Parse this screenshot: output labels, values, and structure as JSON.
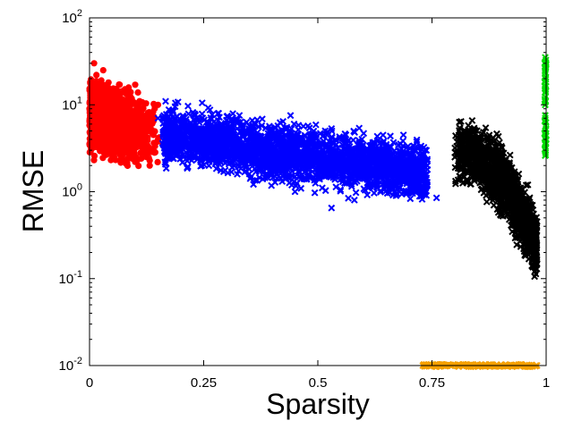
{
  "chart_data": {
    "type": "scatter",
    "title": "",
    "xlabel": "Sparsity",
    "ylabel": "RMSE",
    "xlim": [
      0,
      1
    ],
    "ylim": [
      0.01,
      100
    ],
    "yscale": "log",
    "grid": false,
    "legend": "none",
    "x_ticks": [
      {
        "value": 0,
        "label": "0"
      },
      {
        "value": 0.25,
        "label": "0.25"
      },
      {
        "value": 0.5,
        "label": "0.5"
      },
      {
        "value": 0.75,
        "label": "0.75"
      },
      {
        "value": 1,
        "label": "1"
      }
    ],
    "y_ticks": [
      {
        "value": 0.01,
        "base": "10",
        "exp": "-2"
      },
      {
        "value": 0.1,
        "base": "10",
        "exp": "-1"
      },
      {
        "value": 1,
        "base": "10",
        "exp": "0"
      },
      {
        "value": 10,
        "base": "10",
        "exp": "1"
      },
      {
        "value": 100,
        "base": "10",
        "exp": "2"
      }
    ],
    "series": [
      {
        "color": "#ff0000",
        "marker": "circle",
        "x_range": [
          0.0,
          0.18
        ],
        "y_range": [
          2.0,
          30.0
        ],
        "points": [
          [
            0.0,
            9.0
          ],
          [
            0.005,
            12.0
          ],
          [
            0.01,
            30.0
          ],
          [
            0.015,
            22.0
          ],
          [
            0.02,
            18.0
          ],
          [
            0.03,
            25.0
          ],
          [
            0.04,
            15.0
          ],
          [
            0.05,
            11.0
          ],
          [
            0.06,
            13.0
          ],
          [
            0.07,
            9.0
          ],
          [
            0.08,
            8.0
          ],
          [
            0.09,
            14.0
          ],
          [
            0.1,
            17.0
          ],
          [
            0.11,
            7.0
          ],
          [
            0.12,
            6.0
          ],
          [
            0.13,
            5.0
          ],
          [
            0.14,
            4.5
          ],
          [
            0.15,
            4.0
          ],
          [
            0.16,
            3.5
          ],
          [
            0.17,
            3.0
          ],
          [
            0.18,
            2.8
          ],
          [
            0.02,
            3.5
          ],
          [
            0.05,
            2.6
          ],
          [
            0.08,
            2.1
          ],
          [
            0.1,
            2.2
          ],
          [
            0.12,
            3.0
          ],
          [
            0.15,
            10.0
          ],
          [
            0.03,
            6.0
          ],
          [
            0.06,
            5.0
          ],
          [
            0.09,
            4.0
          ]
        ]
      },
      {
        "color": "#0000ff",
        "marker": "cross",
        "x_range": [
          0.15,
          0.76
        ],
        "y_range": [
          0.65,
          9.0
        ],
        "points": [
          [
            0.15,
            7.0
          ],
          [
            0.18,
            8.5
          ],
          [
            0.2,
            6.0
          ],
          [
            0.22,
            5.5
          ],
          [
            0.25,
            5.0
          ],
          [
            0.28,
            4.5
          ],
          [
            0.3,
            4.0
          ],
          [
            0.32,
            6.5
          ],
          [
            0.35,
            3.5
          ],
          [
            0.38,
            3.0
          ],
          [
            0.4,
            3.2
          ],
          [
            0.42,
            2.8
          ],
          [
            0.45,
            2.5
          ],
          [
            0.48,
            2.4
          ],
          [
            0.5,
            2.2
          ],
          [
            0.52,
            4.5
          ],
          [
            0.55,
            2.0
          ],
          [
            0.57,
            1.6
          ],
          [
            0.6,
            1.8
          ],
          [
            0.62,
            1.5
          ],
          [
            0.65,
            3.5
          ],
          [
            0.68,
            1.4
          ],
          [
            0.7,
            2.0
          ],
          [
            0.72,
            1.3
          ],
          [
            0.76,
            0.85
          ],
          [
            0.53,
            0.65
          ],
          [
            0.58,
            0.8
          ],
          [
            0.74,
            1.8
          ],
          [
            0.35,
            1.6
          ],
          [
            0.45,
            1.0
          ]
        ]
      },
      {
        "color": "#000000",
        "marker": "cross",
        "x_range": [
          0.8,
          0.98
        ],
        "y_range": [
          0.12,
          4.5
        ],
        "points": [
          [
            0.8,
            2.5
          ],
          [
            0.81,
            4.0
          ],
          [
            0.82,
            3.2
          ],
          [
            0.83,
            2.8
          ],
          [
            0.84,
            3.5
          ],
          [
            0.85,
            2.2
          ],
          [
            0.86,
            2.6
          ],
          [
            0.87,
            1.8
          ],
          [
            0.88,
            1.5
          ],
          [
            0.89,
            1.9
          ],
          [
            0.9,
            1.2
          ],
          [
            0.91,
            1.0
          ],
          [
            0.92,
            1.4
          ],
          [
            0.93,
            0.8
          ],
          [
            0.94,
            0.6
          ],
          [
            0.95,
            0.9
          ],
          [
            0.96,
            0.4
          ],
          [
            0.97,
            0.3
          ],
          [
            0.98,
            0.15
          ],
          [
            0.975,
            0.12
          ],
          [
            0.97,
            0.7
          ],
          [
            0.96,
            1.2
          ],
          [
            0.94,
            1.6
          ],
          [
            0.92,
            2.0
          ],
          [
            0.9,
            2.5
          ]
        ]
      },
      {
        "color": "#00dd00",
        "marker": "cross",
        "x_range": [
          0.997,
          1.0
        ],
        "y_range": [
          2.6,
          35.0
        ],
        "points": [
          [
            0.998,
            2.6
          ],
          [
            0.998,
            3.5
          ],
          [
            0.998,
            5.0
          ],
          [
            0.998,
            7.0
          ],
          [
            0.998,
            10.0
          ],
          [
            0.998,
            14.0
          ],
          [
            0.998,
            20.0
          ],
          [
            0.998,
            27.0
          ],
          [
            0.998,
            35.0
          ]
        ]
      },
      {
        "color": "#f5a000",
        "marker": "cross",
        "x_range": [
          0.73,
          0.98
        ],
        "y_range": [
          0.0095,
          0.0105
        ],
        "points": [
          [
            0.73,
            0.01
          ],
          [
            0.76,
            0.01
          ],
          [
            0.79,
            0.01
          ],
          [
            0.82,
            0.01
          ],
          [
            0.85,
            0.01
          ],
          [
            0.88,
            0.01
          ],
          [
            0.91,
            0.01
          ],
          [
            0.94,
            0.01
          ],
          [
            0.97,
            0.01
          ],
          [
            0.98,
            0.01
          ]
        ]
      }
    ]
  }
}
